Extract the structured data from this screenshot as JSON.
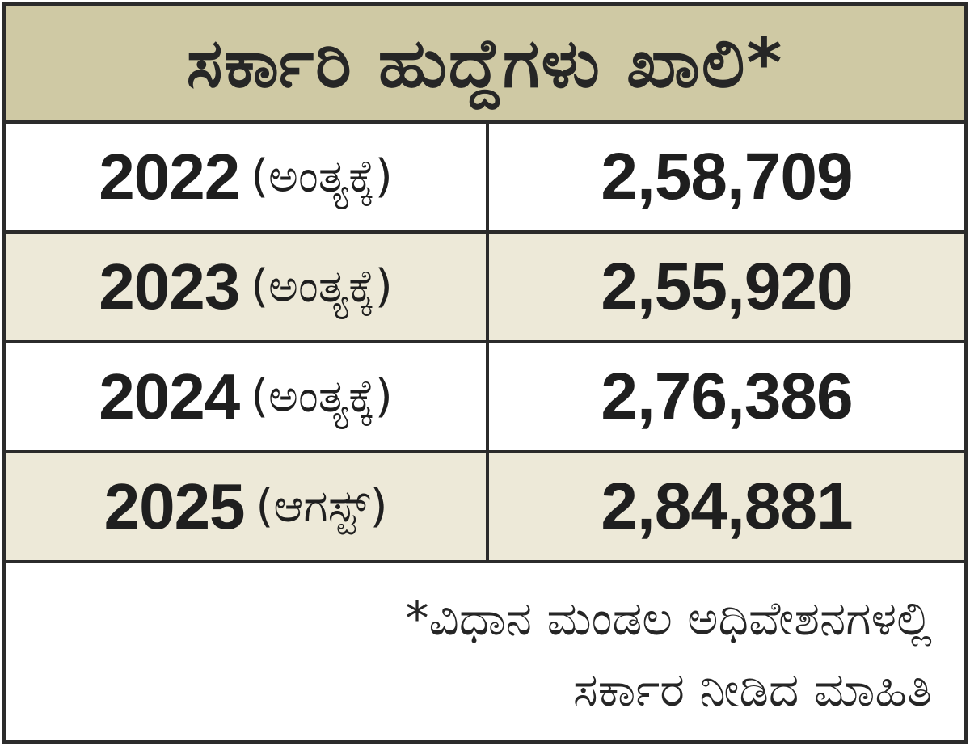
{
  "chart_data": {
    "type": "table",
    "title": "ಸರ್ಕಾರಿ ಹುದ್ದೆಗಳು ಖಾಲಿ*",
    "rows": [
      {
        "year": "2022",
        "qualifier": "(ಅಂತ್ಯಕ್ಕೆ)",
        "value": "2,58,709"
      },
      {
        "year": "2023",
        "qualifier": "(ಅಂತ್ಯಕ್ಕೆ)",
        "value": "2,55,920"
      },
      {
        "year": "2024",
        "qualifier": "(ಅಂತ್ಯಕ್ಕೆ)",
        "value": "2,76,386"
      },
      {
        "year": "2025",
        "qualifier": "(ಆಗಸ್ಟ್)",
        "value": "2,84,881"
      }
    ],
    "footnote": [
      "*ವಿಧಾನ ಮಂಡಲ ಅಧಿವೇಶನಗಳಲ್ಲಿ",
      "ಸರ್ಕಾರ ನೀಡಿದ ಮಾಹಿತಿ"
    ]
  },
  "colors": {
    "header_bg": "#cfc9a4",
    "alt_row_bg": "#ede9d8",
    "border": "#2b2b2b",
    "text": "#1f1f1f"
  }
}
